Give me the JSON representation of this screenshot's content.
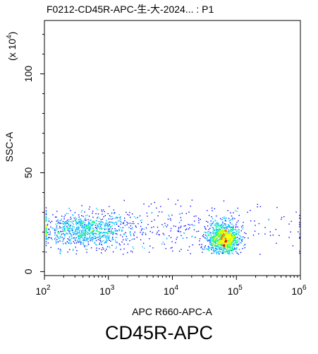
{
  "chart_data": {
    "type": "scatter",
    "subtype": "flow-cytometry-density-plot",
    "title": "F0212-CD45R-APC-生-大-2024... : P1",
    "xlabel": "APC R660-APC-A",
    "ylabel": "SSC-A",
    "y_multiplier": "(x 10",
    "y_multiplier_exp": "4",
    "y_multiplier_close": ")",
    "x_scale": "log",
    "xlim": [
      100,
      1000000
    ],
    "ylim": [
      -2,
      127
    ],
    "x_ticks": [
      {
        "value": 100,
        "base": "10",
        "exp": "2"
      },
      {
        "value": 1000,
        "base": "10",
        "exp": "3"
      },
      {
        "value": 10000,
        "base": "10",
        "exp": "4"
      },
      {
        "value": 100000,
        "base": "10",
        "exp": "5"
      },
      {
        "value": 1000000,
        "base": "10",
        "exp": "6"
      }
    ],
    "y_ticks": [
      {
        "value": 0,
        "label": "0"
      },
      {
        "value": 50,
        "label": "50"
      },
      {
        "value": 100,
        "label": "100"
      }
    ],
    "grid": false,
    "legend": "none",
    "populations": [
      {
        "x_center_log10": 2.6,
        "x_spread_log10": 0.35,
        "y_center": 21,
        "y_spread": 4.5,
        "count": 900,
        "peak_density": "low-medium"
      },
      {
        "x_center_log10": 4.8,
        "x_spread_log10": 0.12,
        "y_center": 17,
        "y_spread": 4,
        "count": 1100,
        "peak_density": "high"
      },
      {
        "x_center_log10": 4.0,
        "x_spread_log10": 1.0,
        "y_center": 22,
        "y_spread": 6,
        "count": 350,
        "peak_density": "sparse"
      }
    ],
    "colormap": [
      "#0000ff",
      "#00bfff",
      "#00ff7f",
      "#c8ff00",
      "#ffff00",
      "#ff8000",
      "#ff0000"
    ]
  },
  "caption": "CD45R-APC"
}
